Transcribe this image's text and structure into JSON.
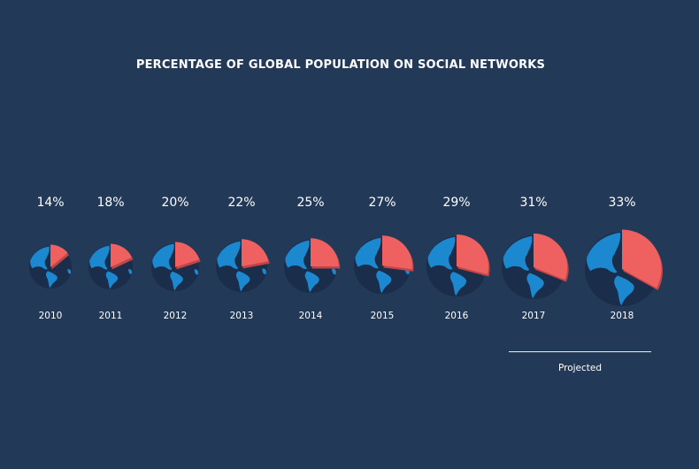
{
  "chart_data": {
    "type": "pie",
    "title": "PERCENTAGE OF GLOBAL POPULATION ON SOCIAL NETWORKS",
    "categories": [
      "2010",
      "2011",
      "2012",
      "2013",
      "2014",
      "2015",
      "2016",
      "2017",
      "2018"
    ],
    "values": [
      14,
      18,
      20,
      22,
      25,
      27,
      29,
      31,
      33
    ],
    "value_labels": [
      "14%",
      "18%",
      "20%",
      "22%",
      "25%",
      "27%",
      "29%",
      "31%",
      "33%"
    ],
    "projected_label": "Projected",
    "projected_categories": [
      "2017",
      "2018"
    ],
    "colors": {
      "background": "#223957",
      "ocean": "#1a2d4a",
      "land": "#1b88cf",
      "slice": "#ef6161",
      "slice_edge": "#c04646",
      "text": "#ffffff"
    }
  }
}
